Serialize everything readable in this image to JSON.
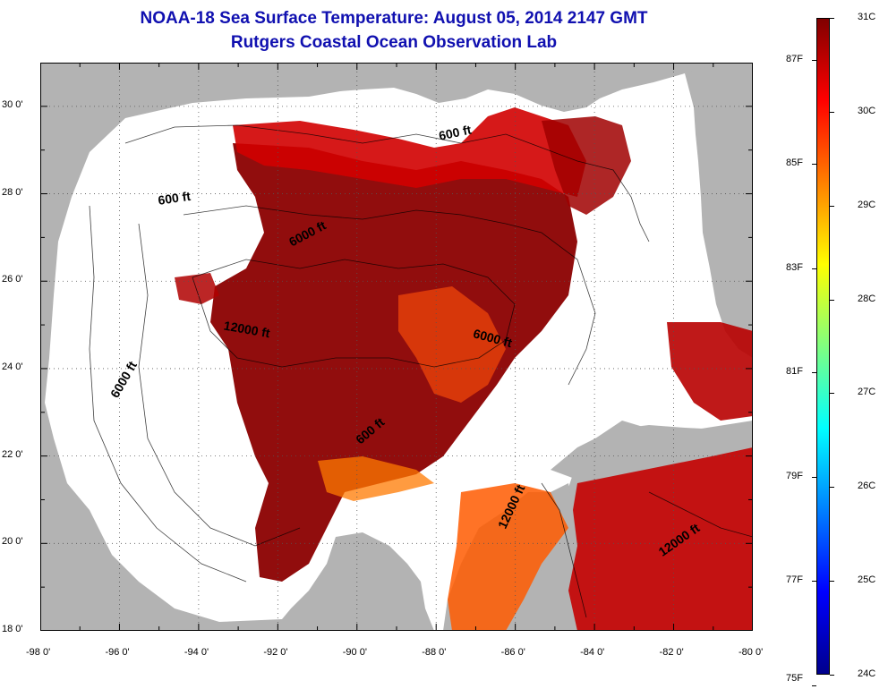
{
  "title": {
    "line1": "NOAA-18 Sea Surface Temperature:  August 05, 2014 2147 GMT",
    "line2": "Rutgers Coastal Ocean Observation Lab"
  },
  "map": {
    "lon_range": [
      -98,
      -80
    ],
    "lat_range": [
      18,
      31
    ],
    "x_tick_labels": [
      {
        "lon": -98,
        "label": "-98 0'"
      },
      {
        "lon": -96,
        "label": "-96 0'"
      },
      {
        "lon": -94,
        "label": "-94 0'"
      },
      {
        "lon": -92,
        "label": "-92 0'"
      },
      {
        "lon": -90,
        "label": "-90 0'"
      },
      {
        "lon": -88,
        "label": "-88 0'"
      },
      {
        "lon": -86,
        "label": "-86 0'"
      },
      {
        "lon": -84,
        "label": "-84 0'"
      },
      {
        "lon": -82,
        "label": "-82 0'"
      },
      {
        "lon": -80,
        "label": "-80 0'"
      }
    ],
    "y_tick_labels": [
      {
        "lat": 30,
        "label": "30 0'"
      },
      {
        "lat": 28,
        "label": "28 0'"
      },
      {
        "lat": 26,
        "label": "26 0'"
      },
      {
        "lat": 24,
        "label": "24 0'"
      },
      {
        "lat": 22,
        "label": "22 0'"
      },
      {
        "lat": 20,
        "label": "20 0'"
      },
      {
        "lat": 18,
        "label": "18 0'"
      }
    ],
    "depth_labels": [
      {
        "text": "600 ft",
        "lon": -94.6,
        "lat": 27.8,
        "rot": -8
      },
      {
        "text": "600 ft",
        "lon": -87.5,
        "lat": 29.3,
        "rot": -12
      },
      {
        "text": "6000 ft",
        "lon": -91.2,
        "lat": 27.0,
        "rot": -28
      },
      {
        "text": "12000 ft",
        "lon": -92.8,
        "lat": 24.8,
        "rot": 10
      },
      {
        "text": "6000 ft",
        "lon": -95.8,
        "lat": 23.7,
        "rot": -60
      },
      {
        "text": "6000 ft",
        "lon": -86.6,
        "lat": 24.6,
        "rot": 15
      },
      {
        "text": "600 ft",
        "lon": -89.6,
        "lat": 22.5,
        "rot": -40
      },
      {
        "text": "12000 ft",
        "lon": -86.0,
        "lat": 20.8,
        "rot": -65
      },
      {
        "text": "12000 ft",
        "lon": -81.8,
        "lat": 20.0,
        "rot": -35
      }
    ]
  },
  "colorbar": {
    "colors": [
      "#00008c",
      "#0000ff",
      "#0080ff",
      "#00ffff",
      "#80ff80",
      "#ffff00",
      "#ff8000",
      "#ff0000",
      "#800000"
    ],
    "celsius_labels": [
      {
        "value": 24,
        "label": "24C"
      },
      {
        "value": 25,
        "label": "25C"
      },
      {
        "value": 26,
        "label": "26C"
      },
      {
        "value": 27,
        "label": "27C"
      },
      {
        "value": 28,
        "label": "28C"
      },
      {
        "value": 29,
        "label": "29C"
      },
      {
        "value": 30,
        "label": "30C"
      },
      {
        "value": 31,
        "label": "31C"
      }
    ],
    "fahrenheit_labels": [
      {
        "value": 75,
        "label": "75F"
      },
      {
        "value": 77,
        "label": "77F"
      },
      {
        "value": 79,
        "label": "79F"
      },
      {
        "value": 81,
        "label": "81F"
      },
      {
        "value": 83,
        "label": "83F"
      },
      {
        "value": 85,
        "label": "85F"
      },
      {
        "value": 87,
        "label": "87F"
      }
    ]
  },
  "palette": {
    "land": "#b3b3b3",
    "no_data": "#ffffff",
    "warm": "#8b0000",
    "hot": "#e00000",
    "orange": "#ff6a00",
    "title_color": "#1010b0"
  }
}
